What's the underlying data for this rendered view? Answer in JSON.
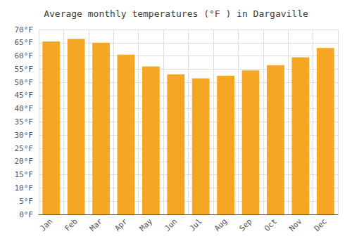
{
  "chart_data": {
    "type": "bar",
    "title": "Average monthly temperatures (°F ) in Dargaville",
    "categories": [
      "Jan",
      "Feb",
      "Mar",
      "Apr",
      "May",
      "Jun",
      "Jul",
      "Aug",
      "Sep",
      "Oct",
      "Nov",
      "Dec"
    ],
    "values": [
      65.5,
      66.5,
      65.0,
      60.5,
      56.0,
      53.0,
      51.5,
      52.5,
      54.5,
      56.5,
      59.5,
      63.0
    ],
    "color": "#F5A623",
    "ylim": [
      0,
      70
    ],
    "yticks": [
      {
        "value": 0,
        "label": "0°F"
      },
      {
        "value": 5,
        "label": "5°F"
      },
      {
        "value": 10,
        "label": "10°F"
      },
      {
        "value": 15,
        "label": "15°F"
      },
      {
        "value": 20,
        "label": "20°F"
      },
      {
        "value": 25,
        "label": "25°F"
      },
      {
        "value": 30,
        "label": "30°F"
      },
      {
        "value": 35,
        "label": "35°F"
      },
      {
        "value": 40,
        "label": "40°F"
      },
      {
        "value": 45,
        "label": "45°F"
      },
      {
        "value": 50,
        "label": "50°F"
      },
      {
        "value": 55,
        "label": "55°F"
      },
      {
        "value": 60,
        "label": "60°F"
      },
      {
        "value": 65,
        "label": "65°F"
      },
      {
        "value": 70,
        "label": "70°F"
      }
    ],
    "grid": true
  }
}
